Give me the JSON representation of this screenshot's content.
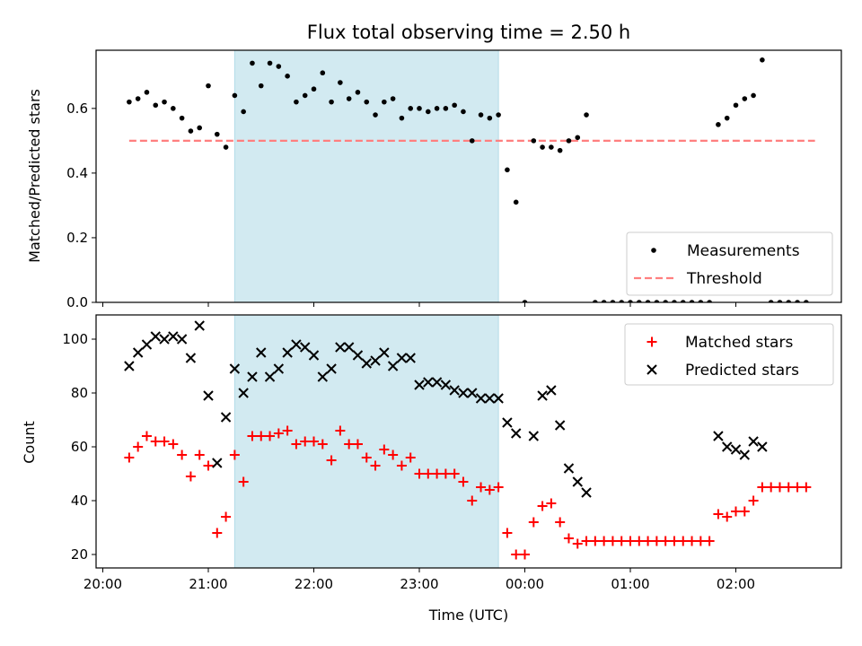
{
  "chart_data": [
    {
      "type": "scatter",
      "title": "Flux total observing time = 2.50 h",
      "xlabel": "",
      "ylabel": "Matched/Predicted stars",
      "xlim": [
        "20:00",
        "03:00"
      ],
      "ylim": [
        0,
        0.78
      ],
      "yticks": [
        0.0,
        0.2,
        0.4,
        0.6
      ],
      "yticklabels": [
        "0.0",
        "0.2",
        "0.4",
        "0.6"
      ],
      "shaded_region": {
        "x": [
          "21:15",
          "23:45"
        ],
        "color": "#add8e6"
      },
      "legend": {
        "placement": "lower-right",
        "entries": [
          "Measurements",
          "Threshold"
        ]
      },
      "threshold": {
        "name": "Threshold",
        "y": 0.5,
        "x": [
          "20:15",
          "02:45"
        ],
        "color": "#ff7f7f"
      },
      "series": [
        {
          "name": "Measurements",
          "color": "#000000",
          "points": [
            [
              "20:15",
              0.62
            ],
            [
              "20:20",
              0.63
            ],
            [
              "20:25",
              0.65
            ],
            [
              "20:30",
              0.61
            ],
            [
              "20:35",
              0.62
            ],
            [
              "20:40",
              0.6
            ],
            [
              "20:45",
              0.57
            ],
            [
              "20:50",
              0.53
            ],
            [
              "20:55",
              0.54
            ],
            [
              "21:00",
              0.67
            ],
            [
              "21:05",
              0.52
            ],
            [
              "21:10",
              0.48
            ],
            [
              "21:15",
              0.64
            ],
            [
              "21:20",
              0.59
            ],
            [
              "21:25",
              0.74
            ],
            [
              "21:30",
              0.67
            ],
            [
              "21:35",
              0.74
            ],
            [
              "21:40",
              0.73
            ],
            [
              "21:45",
              0.7
            ],
            [
              "21:50",
              0.62
            ],
            [
              "21:55",
              0.64
            ],
            [
              "22:00",
              0.66
            ],
            [
              "22:05",
              0.71
            ],
            [
              "22:10",
              0.62
            ],
            [
              "22:15",
              0.68
            ],
            [
              "22:20",
              0.63
            ],
            [
              "22:25",
              0.65
            ],
            [
              "22:30",
              0.62
            ],
            [
              "22:35",
              0.58
            ],
            [
              "22:40",
              0.62
            ],
            [
              "22:45",
              0.63
            ],
            [
              "22:50",
              0.57
            ],
            [
              "22:55",
              0.6
            ],
            [
              "23:00",
              0.6
            ],
            [
              "23:05",
              0.59
            ],
            [
              "23:10",
              0.6
            ],
            [
              "23:15",
              0.6
            ],
            [
              "23:20",
              0.61
            ],
            [
              "23:25",
              0.59
            ],
            [
              "23:30",
              0.5
            ],
            [
              "23:35",
              0.58
            ],
            [
              "23:40",
              0.57
            ],
            [
              "23:45",
              0.58
            ],
            [
              "23:50",
              0.41
            ],
            [
              "23:55",
              0.31
            ],
            [
              "00:00",
              0.0
            ],
            [
              "00:05",
              0.5
            ],
            [
              "00:10",
              0.48
            ],
            [
              "00:15",
              0.48
            ],
            [
              "00:20",
              0.47
            ],
            [
              "00:25",
              0.5
            ],
            [
              "00:30",
              0.51
            ],
            [
              "00:35",
              0.58
            ],
            [
              "00:40",
              0.0
            ],
            [
              "00:45",
              0.0
            ],
            [
              "00:50",
              0.0
            ],
            [
              "00:55",
              0.0
            ],
            [
              "01:00",
              0.0
            ],
            [
              "01:05",
              0.0
            ],
            [
              "01:10",
              0.0
            ],
            [
              "01:15",
              0.0
            ],
            [
              "01:20",
              0.0
            ],
            [
              "01:25",
              0.0
            ],
            [
              "01:30",
              0.0
            ],
            [
              "01:35",
              0.0
            ],
            [
              "01:40",
              0.0
            ],
            [
              "01:45",
              0.0
            ],
            [
              "01:50",
              0.55
            ],
            [
              "01:55",
              0.57
            ],
            [
              "02:00",
              0.61
            ],
            [
              "02:05",
              0.63
            ],
            [
              "02:10",
              0.64
            ],
            [
              "02:15",
              0.75
            ],
            [
              "02:20",
              0.0
            ],
            [
              "02:25",
              0.0
            ],
            [
              "02:30",
              0.0
            ],
            [
              "02:35",
              0.0
            ],
            [
              "02:40",
              0.0
            ]
          ]
        }
      ]
    },
    {
      "type": "scatter",
      "title": "",
      "xlabel": "Time (UTC)",
      "ylabel": "Count",
      "xlim": [
        "20:00",
        "03:00"
      ],
      "ylim": [
        15,
        109
      ],
      "yticks": [
        20,
        40,
        60,
        80,
        100
      ],
      "xticks": [
        "20:00",
        "21:00",
        "22:00",
        "23:00",
        "00:00",
        "01:00",
        "02:00"
      ],
      "shaded_region": {
        "x": [
          "21:15",
          "23:45"
        ],
        "color": "#add8e6"
      },
      "legend": {
        "placement": "upper-right",
        "entries": [
          "Matched stars",
          "Predicted stars"
        ]
      },
      "series": [
        {
          "name": "Matched stars",
          "marker": "plus",
          "color": "#ff0000",
          "points": [
            [
              "20:15",
              56
            ],
            [
              "20:20",
              60
            ],
            [
              "20:25",
              64
            ],
            [
              "20:30",
              62
            ],
            [
              "20:35",
              62
            ],
            [
              "20:40",
              61
            ],
            [
              "20:45",
              57
            ],
            [
              "20:50",
              49
            ],
            [
              "20:55",
              57
            ],
            [
              "21:00",
              53
            ],
            [
              "21:05",
              28
            ],
            [
              "21:10",
              34
            ],
            [
              "21:15",
              57
            ],
            [
              "21:20",
              47
            ],
            [
              "21:25",
              64
            ],
            [
              "21:30",
              64
            ],
            [
              "21:35",
              64
            ],
            [
              "21:40",
              65
            ],
            [
              "21:45",
              66
            ],
            [
              "21:50",
              61
            ],
            [
              "21:55",
              62
            ],
            [
              "22:00",
              62
            ],
            [
              "22:05",
              61
            ],
            [
              "22:10",
              55
            ],
            [
              "22:15",
              66
            ],
            [
              "22:20",
              61
            ],
            [
              "22:25",
              61
            ],
            [
              "22:30",
              56
            ],
            [
              "22:35",
              53
            ],
            [
              "22:40",
              59
            ],
            [
              "22:45",
              57
            ],
            [
              "22:50",
              53
            ],
            [
              "22:55",
              56
            ],
            [
              "23:00",
              50
            ],
            [
              "23:05",
              50
            ],
            [
              "23:10",
              50
            ],
            [
              "23:15",
              50
            ],
            [
              "23:20",
              50
            ],
            [
              "23:25",
              47
            ],
            [
              "23:30",
              40
            ],
            [
              "23:35",
              45
            ],
            [
              "23:40",
              44
            ],
            [
              "23:45",
              45
            ],
            [
              "23:50",
              28
            ],
            [
              "23:55",
              20
            ],
            [
              "00:00",
              20
            ],
            [
              "00:05",
              32
            ],
            [
              "00:10",
              38
            ],
            [
              "00:15",
              39
            ],
            [
              "00:20",
              32
            ],
            [
              "00:25",
              26
            ],
            [
              "00:30",
              24
            ],
            [
              "00:35",
              25
            ],
            [
              "00:40",
              25
            ],
            [
              "00:45",
              25
            ],
            [
              "00:50",
              25
            ],
            [
              "00:55",
              25
            ],
            [
              "01:00",
              25
            ],
            [
              "01:05",
              25
            ],
            [
              "01:10",
              25
            ],
            [
              "01:15",
              25
            ],
            [
              "01:20",
              25
            ],
            [
              "01:25",
              25
            ],
            [
              "01:30",
              25
            ],
            [
              "01:35",
              25
            ],
            [
              "01:40",
              25
            ],
            [
              "01:45",
              25
            ],
            [
              "01:50",
              35
            ],
            [
              "01:55",
              34
            ],
            [
              "02:00",
              36
            ],
            [
              "02:05",
              36
            ],
            [
              "02:10",
              40
            ],
            [
              "02:15",
              45
            ],
            [
              "02:20",
              45
            ],
            [
              "02:25",
              45
            ],
            [
              "02:30",
              45
            ],
            [
              "02:35",
              45
            ],
            [
              "02:40",
              45
            ]
          ]
        },
        {
          "name": "Predicted stars",
          "marker": "x",
          "color": "#000000",
          "points": [
            [
              "20:15",
              90
            ],
            [
              "20:20",
              95
            ],
            [
              "20:25",
              98
            ],
            [
              "20:30",
              101
            ],
            [
              "20:35",
              100
            ],
            [
              "20:40",
              101
            ],
            [
              "20:45",
              100
            ],
            [
              "20:50",
              93
            ],
            [
              "20:55",
              105
            ],
            [
              "21:00",
              79
            ],
            [
              "21:05",
              54
            ],
            [
              "21:10",
              71
            ],
            [
              "21:15",
              89
            ],
            [
              "21:20",
              80
            ],
            [
              "21:25",
              86
            ],
            [
              "21:30",
              95
            ],
            [
              "21:35",
              86
            ],
            [
              "21:40",
              89
            ],
            [
              "21:45",
              95
            ],
            [
              "21:50",
              98
            ],
            [
              "21:55",
              97
            ],
            [
              "22:00",
              94
            ],
            [
              "22:05",
              86
            ],
            [
              "22:10",
              89
            ],
            [
              "22:15",
              97
            ],
            [
              "22:20",
              97
            ],
            [
              "22:25",
              94
            ],
            [
              "22:30",
              91
            ],
            [
              "22:35",
              92
            ],
            [
              "22:40",
              95
            ],
            [
              "22:45",
              90
            ],
            [
              "22:50",
              93
            ],
            [
              "22:55",
              93
            ],
            [
              "23:00",
              83
            ],
            [
              "23:05",
              84
            ],
            [
              "23:10",
              84
            ],
            [
              "23:15",
              83
            ],
            [
              "23:20",
              81
            ],
            [
              "23:25",
              80
            ],
            [
              "23:30",
              80
            ],
            [
              "23:35",
              78
            ],
            [
              "23:40",
              78
            ],
            [
              "23:45",
              78
            ],
            [
              "23:50",
              69
            ],
            [
              "23:55",
              65
            ],
            [
              "00:05",
              64
            ],
            [
              "00:10",
              79
            ],
            [
              "00:15",
              81
            ],
            [
              "00:20",
              68
            ],
            [
              "00:25",
              52
            ],
            [
              "00:30",
              47
            ],
            [
              "00:35",
              43
            ],
            [
              "01:50",
              64
            ],
            [
              "01:55",
              60
            ],
            [
              "02:00",
              59
            ],
            [
              "02:05",
              57
            ],
            [
              "02:10",
              62
            ],
            [
              "02:15",
              60
            ]
          ]
        }
      ]
    }
  ]
}
